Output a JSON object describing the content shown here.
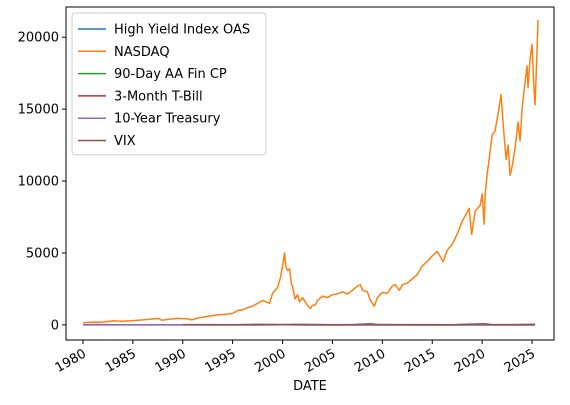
{
  "chart_data": {
    "type": "line",
    "xlabel": "DATE",
    "ylabel": "",
    "xlim": [
      1978.3,
      2027.2
    ],
    "ylim": [
      -1050,
      22100
    ],
    "x_ticks": [
      1980,
      1985,
      1990,
      1995,
      2000,
      2005,
      2010,
      2015,
      2020,
      2025
    ],
    "y_ticks": [
      0,
      5000,
      10000,
      15000,
      20000
    ],
    "legend_position": "top-left",
    "series": [
      {
        "name": "High Yield Index OAS",
        "color": "#1f77b4",
        "x": [
          1980,
          1990,
          2000,
          2008.8,
          2009.2,
          2015,
          2020.2,
          2025.3
        ],
        "y": [
          0,
          0,
          6,
          19,
          10,
          5,
          9,
          3
        ]
      },
      {
        "name": "NASDAQ",
        "color": "#ff7f0e",
        "x": [
          1980.0,
          1981.0,
          1982.0,
          1983.0,
          1984.0,
          1985.0,
          1986.0,
          1987.6,
          1987.9,
          1988.5,
          1989.5,
          1990.5,
          1990.9,
          1991.5,
          1992.5,
          1993.5,
          1994.5,
          1995.0,
          1995.5,
          1996.0,
          1996.5,
          1997.0,
          1997.5,
          1998.0,
          1998.7,
          1999.0,
          1999.5,
          1999.8,
          2000.0,
          2000.2,
          2000.35,
          2000.5,
          2000.7,
          2000.9,
          2001.0,
          2001.25,
          2001.5,
          2001.7,
          2002.0,
          2002.5,
          2002.8,
          2003.0,
          2003.3,
          2003.5,
          2004.0,
          2004.5,
          2005.0,
          2005.5,
          2006.0,
          2006.5,
          2007.0,
          2007.5,
          2007.8,
          2008.0,
          2008.5,
          2008.8,
          2009.0,
          2009.2,
          2009.5,
          2010.0,
          2010.5,
          2011.0,
          2011.3,
          2011.7,
          2012.0,
          2012.5,
          2013.0,
          2013.5,
          2014.0,
          2014.5,
          2015.0,
          2015.5,
          2016.1,
          2016.5,
          2017.0,
          2017.5,
          2018.0,
          2018.7,
          2018.95,
          2019.3,
          2019.8,
          2020.0,
          2020.2,
          2020.3,
          2020.5,
          2020.7,
          2021.0,
          2021.3,
          2021.6,
          2021.9,
          2022.1,
          2022.4,
          2022.6,
          2022.8,
          2023.0,
          2023.3,
          2023.6,
          2023.8,
          2024.0,
          2024.2,
          2024.5,
          2024.6,
          2024.8,
          2025.0,
          2025.15,
          2025.3,
          2025.5,
          2025.6
        ],
        "y": [
          150,
          200,
          190,
          280,
          250,
          300,
          350,
          450,
          320,
          380,
          450,
          420,
          350,
          480,
          600,
          700,
          750,
          800,
          1000,
          1050,
          1200,
          1300,
          1500,
          1700,
          1500,
          2200,
          2600,
          3300,
          4100,
          5000,
          4000,
          3800,
          3900,
          2800,
          2700,
          1800,
          2100,
          1600,
          1900,
          1350,
          1150,
          1350,
          1400,
          1700,
          2000,
          1900,
          2100,
          2150,
          2300,
          2150,
          2400,
          2700,
          2800,
          2400,
          2300,
          1700,
          1500,
          1300,
          1900,
          2250,
          2200,
          2700,
          2800,
          2400,
          2800,
          2900,
          3200,
          3500,
          4100,
          4400,
          4800,
          5100,
          4400,
          5200,
          5600,
          6300,
          7200,
          8100,
          6300,
          7900,
          8300,
          9100,
          7000,
          9000,
          10500,
          11500,
          13200,
          13500,
          14700,
          16000,
          14000,
          11500,
          12500,
          10400,
          11000,
          12300,
          14100,
          12800,
          15000,
          16300,
          18000,
          16500,
          18500,
          19500,
          17000,
          15300,
          19000,
          21200
        ]
      },
      {
        "name": "90-Day AA Fin CP",
        "color": "#2ca02c",
        "x": [
          1997,
          2000,
          2002,
          2006,
          2008,
          2010,
          2015,
          2019,
          2021,
          2023,
          2025.3
        ],
        "y": [
          5.5,
          6.5,
          1.7,
          5.2,
          2.5,
          0.3,
          0.3,
          2.2,
          0.1,
          5.3,
          4.3
        ]
      },
      {
        "name": "3-Month T-Bill",
        "color": "#d62728",
        "x": [
          1980,
          1981,
          1983,
          1985,
          1990,
          1993,
          2000,
          2003,
          2006,
          2009,
          2015,
          2019,
          2021,
          2023,
          2025.3
        ],
        "y": [
          12,
          15,
          9,
          7,
          8,
          3,
          6,
          1,
          5,
          0.1,
          0.1,
          2.3,
          0.05,
          5.3,
          4.3
        ]
      },
      {
        "name": "10-Year Treasury",
        "color": "#9467bd",
        "x": [
          1980,
          1981.5,
          1985,
          1990,
          1995,
          2000,
          2005,
          2010,
          2012.5,
          2015,
          2020.5,
          2023.8,
          2025.3
        ],
        "y": [
          11,
          15.8,
          11,
          8.5,
          6.5,
          6,
          4.3,
          3.3,
          1.6,
          2.2,
          0.6,
          4.9,
          4.3
        ]
      },
      {
        "name": "VIX",
        "color": "#8c564b",
        "x": [
          1990,
          1992,
          1995,
          1998,
          2000,
          2002,
          2005,
          2007,
          2008.8,
          2009.5,
          2012,
          2015,
          2017,
          2018,
          2020.2,
          2021,
          2023,
          2024.6,
          2025.3
        ],
        "y": [
          22,
          15,
          12,
          40,
          24,
          40,
          12,
          15,
          80,
          25,
          17,
          15,
          10,
          35,
          82,
          20,
          15,
          38,
          45
        ]
      }
    ]
  }
}
